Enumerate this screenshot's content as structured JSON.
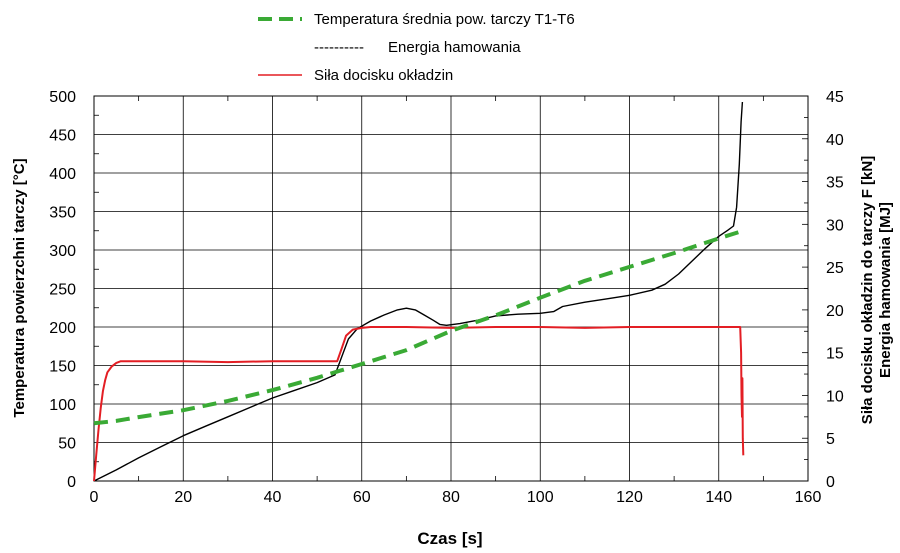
{
  "chart_data": {
    "type": "line",
    "title": "",
    "xlabel": "Czas [s]",
    "ylabel_left": "Temperatura powierzchni tarczy [°C]",
    "ylabel_right_1": "Siła docisku okładzin do tarczy F [kN]",
    "ylabel_right_2": "Energia hamowania [MJ]",
    "xlim": [
      0,
      160
    ],
    "ylim_left": [
      0,
      500
    ],
    "ylim_right": [
      0,
      45
    ],
    "x_ticks": [
      "0",
      "20",
      "40",
      "60",
      "80",
      "100",
      "120",
      "140",
      "160"
    ],
    "y_left_ticks": [
      "0",
      "50",
      "100",
      "150",
      "200",
      "250",
      "300",
      "350",
      "400",
      "450",
      "500"
    ],
    "y_right_ticks": [
      "0",
      "5",
      "10",
      "15",
      "20",
      "25",
      "30",
      "35",
      "40",
      "45"
    ],
    "grid": true,
    "legend_position": "top-center",
    "series": [
      {
        "name": "Temperatura średnia pow. tarczy T1-T6",
        "axis": "left",
        "style": "dashed",
        "color": "#3aaa35",
        "x": [
          0,
          5,
          10,
          20,
          30,
          40,
          50,
          55,
          60,
          70,
          80,
          90,
          100,
          110,
          120,
          130,
          140,
          146
        ],
        "y": [
          75,
          78,
          83,
          92,
          104,
          118,
          134,
          143,
          152,
          170,
          195,
          215,
          238,
          260,
          278,
          296,
          315,
          326
        ]
      },
      {
        "name": "Energia hamowania",
        "legend_prefix": "----------",
        "axis": "right",
        "style": "solid",
        "color": "#000000",
        "x": [
          0,
          5,
          10,
          15,
          20,
          25,
          30,
          35,
          40,
          45,
          50,
          54,
          55.5,
          57,
          59,
          62,
          65,
          68,
          70,
          72,
          74,
          76,
          77.5,
          79,
          82,
          86,
          90,
          95,
          100,
          103,
          105,
          110,
          115,
          120,
          125,
          128,
          131,
          134,
          137,
          140,
          142,
          143.3,
          144,
          144.6,
          145.0,
          145.3
        ],
        "y": [
          0,
          1.3,
          2.7,
          4.0,
          5.3,
          6.4,
          7.5,
          8.6,
          9.7,
          10.6,
          11.5,
          12.4,
          14.5,
          16.6,
          17.8,
          18.7,
          19.4,
          20.0,
          20.2,
          20.0,
          19.4,
          18.8,
          18.3,
          18.2,
          18.4,
          18.8,
          19.3,
          19.5,
          19.6,
          19.8,
          20.4,
          20.9,
          21.3,
          21.7,
          22.3,
          23.0,
          24.2,
          25.7,
          27.2,
          28.6,
          29.3,
          29.8,
          32.0,
          37.0,
          42.0,
          44.3
        ]
      },
      {
        "name": "Siła docisku okładzin",
        "axis": "right",
        "style": "solid",
        "color": "#e31e24",
        "x": [
          0,
          0.5,
          1,
          1.5,
          2,
          2.5,
          3,
          4,
          5,
          6,
          7,
          8,
          10,
          20,
          30,
          40,
          50,
          54.5,
          55.5,
          56.5,
          58,
          60,
          62,
          70,
          80,
          90,
          100,
          110,
          120,
          130,
          140,
          144.8,
          145.0,
          145.1,
          145.2,
          145.3,
          145.4,
          145.5
        ],
        "y": [
          0,
          3.0,
          6.0,
          8.5,
          10.5,
          11.8,
          12.7,
          13.4,
          13.8,
          14.0,
          14.0,
          14.0,
          14.0,
          14.0,
          13.9,
          14.0,
          14.0,
          14.0,
          15.5,
          17.0,
          17.7,
          17.9,
          18.0,
          18.0,
          17.9,
          18.0,
          18.0,
          17.9,
          18.0,
          18.0,
          18.0,
          18.0,
          15.0,
          10.0,
          7.5,
          12.0,
          5.0,
          3.0
        ]
      }
    ]
  }
}
